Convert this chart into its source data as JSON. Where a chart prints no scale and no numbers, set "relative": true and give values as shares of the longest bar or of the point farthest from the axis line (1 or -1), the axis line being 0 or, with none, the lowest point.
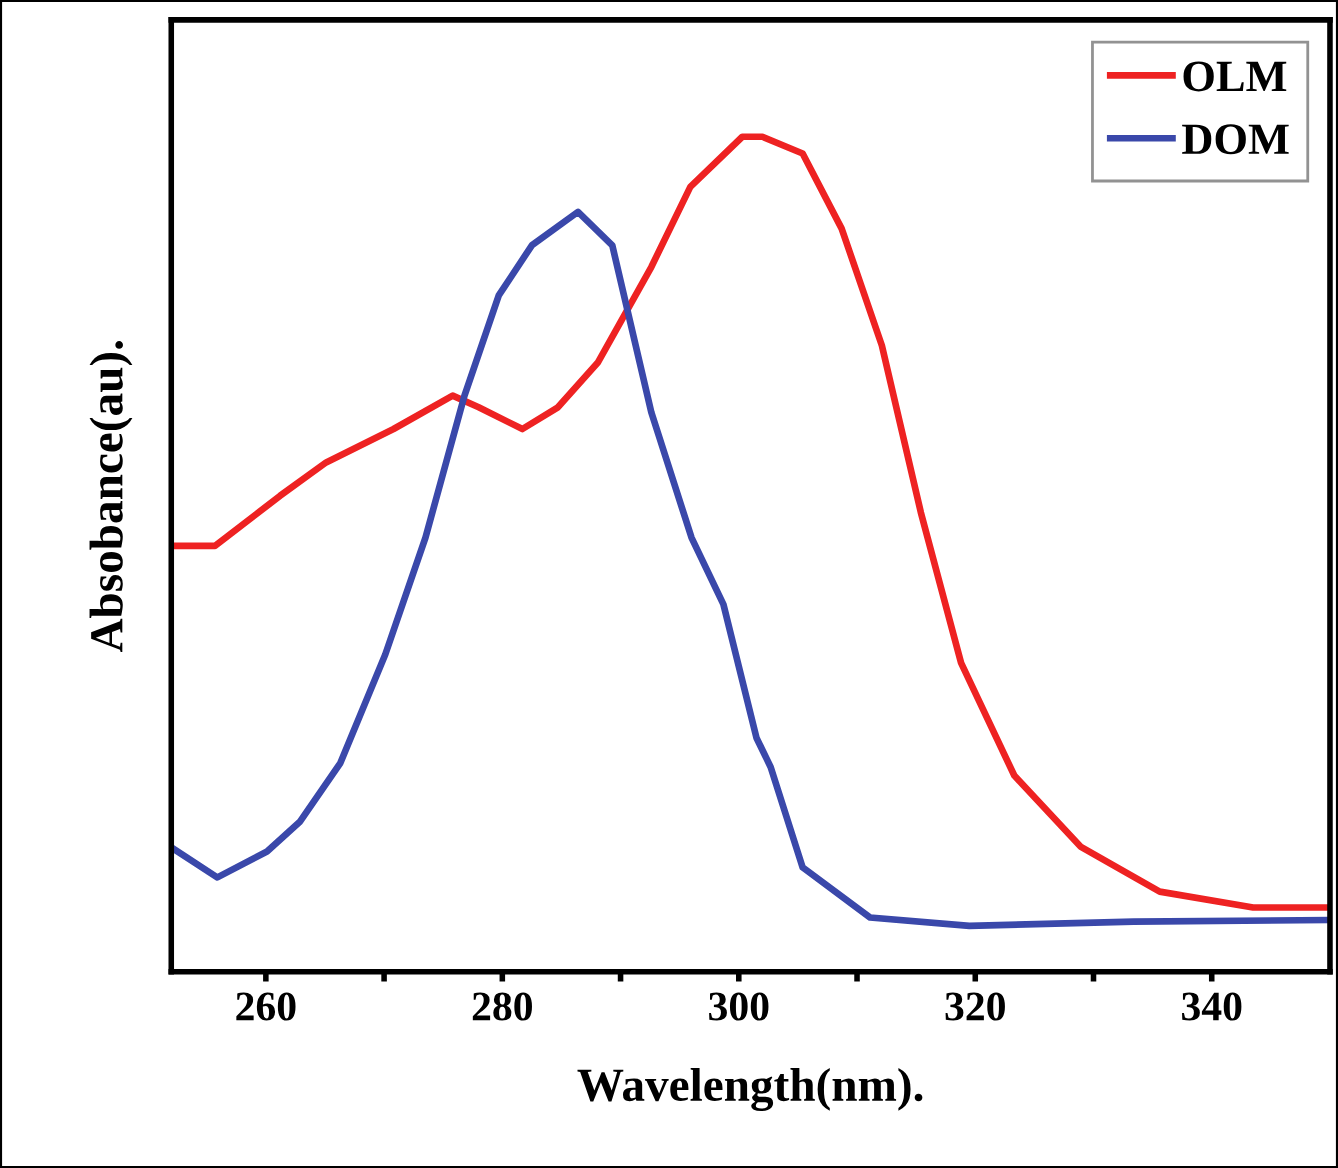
{
  "chart_data": {
    "type": "line",
    "xlabel": "Wavelength(nm).",
    "ylabel": "Absobance(au).",
    "relative": true,
    "xlim": [
      252,
      350
    ],
    "xticks": [
      260,
      {
        "value": 270,
        "label": null
      },
      280,
      {
        "value": 290,
        "label": null
      },
      300,
      {
        "value": 310,
        "label": null
      },
      320,
      {
        "value": 330,
        "label": null
      },
      340
    ],
    "tick_labels": "x",
    "legend": "top right",
    "grid": false,
    "marker": "none",
    "line_style": "solid",
    "series": [
      {
        "name": "OLM",
        "color": "#ee2222",
        "x": [
          252.0,
          255.7,
          261.2,
          265.1,
          270.8,
          275.8,
          278.0,
          281.7,
          284.7,
          288.1,
          292.6,
          295.9,
          300.3,
          302.0,
          305.4,
          308.7,
          312.1,
          315.4,
          318.8,
          323.3,
          328.9,
          335.6,
          343.5,
          349.7
        ],
        "values": [
          0.51,
          0.51,
          0.57,
          0.61,
          0.65,
          0.69,
          0.676,
          0.65,
          0.676,
          0.73,
          0.844,
          0.94,
          1.0,
          1.0,
          0.98,
          0.89,
          0.75,
          0.55,
          0.37,
          0.235,
          0.15,
          0.096,
          0.077,
          0.077
        ]
      },
      {
        "name": "DOM",
        "color": "#3a48aa",
        "x": [
          252.0,
          255.9,
          260.1,
          262.9,
          266.3,
          270.1,
          273.5,
          276.8,
          279.7,
          282.5,
          286.4,
          289.3,
          292.6,
          296.0,
          298.7,
          301.5,
          302.7,
          305.4,
          311.1,
          319.5,
          333.4,
          349.7
        ],
        "values": [
          0.149,
          0.113,
          0.144,
          0.18,
          0.25,
          0.38,
          0.52,
          0.69,
          0.81,
          0.87,
          0.91,
          0.87,
          0.67,
          0.52,
          0.44,
          0.28,
          0.245,
          0.125,
          0.065,
          0.055,
          0.06,
          0.062
        ]
      }
    ]
  }
}
